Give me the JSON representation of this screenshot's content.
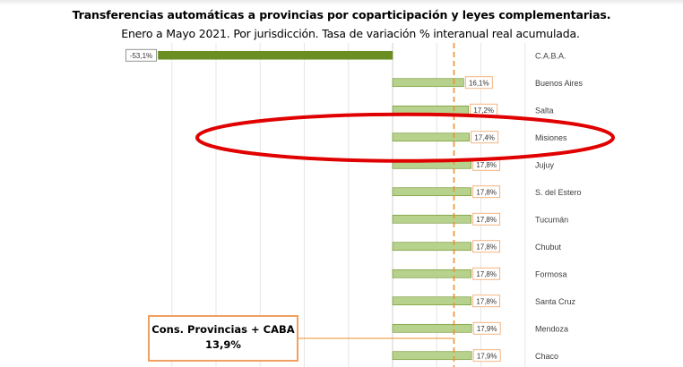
{
  "title": "Transferencias automáticas a provincias por coparticipación y leyes complementarias.",
  "subtitle": "Enero a Mayo 2021. Por jurisdicción. Tasa de variación % interanual real acumulada.",
  "callout": {
    "label": "Cons. Provincias + CABA",
    "value": "13,9%"
  },
  "chart_data": {
    "type": "bar",
    "orientation": "horizontal",
    "categories": [
      "C.A.B.A.",
      "Buenos Aires",
      "Salta",
      "Misiones",
      "Jujuy",
      "S. del Estero",
      "Tucumán",
      "Chubut",
      "Formosa",
      "Santa Cruz",
      "Mendoza",
      "Chaco"
    ],
    "values": [
      -53.1,
      16.1,
      17.2,
      17.4,
      17.8,
      17.8,
      17.8,
      17.8,
      17.8,
      17.8,
      17.9,
      17.9
    ],
    "labels": [
      "-53,1%",
      "16,1%",
      "17,2%",
      "17,4%",
      "17,8%",
      "17,8%",
      "17,8%",
      "17,8%",
      "17,8%",
      "17,8%",
      "17,9%",
      "17,9%"
    ],
    "reference_line": {
      "value": 13.9,
      "style": "dashed",
      "color": "#f28e2b"
    },
    "highlight": {
      "category": "Misiones",
      "shape": "ellipse",
      "color": "#e00000"
    },
    "xlim": [
      -60,
      30
    ],
    "grid": "vertical",
    "colors": {
      "negative_bar": "#6b8e23",
      "positive_bar": "#b7d28d",
      "bar_edge": "#6b8e23",
      "label_border": "#f0a060",
      "reference_line": "#f28e2b",
      "grid": "#e6e6e6",
      "highlight": "#e00000"
    }
  }
}
